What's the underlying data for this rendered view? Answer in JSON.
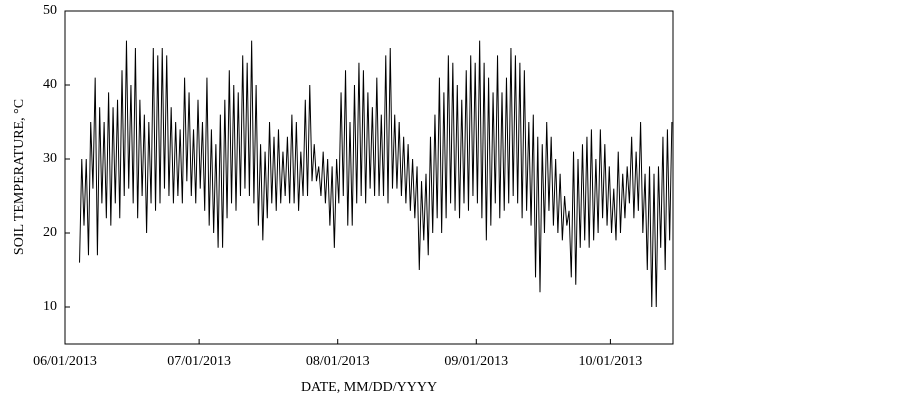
{
  "chart_data": {
    "type": "line",
    "y_label": "SOIL TEMPERATURE, °C",
    "x_label": "DATE, MM/DD/YYYY",
    "color": "#000000",
    "xlim": [
      0,
      136
    ],
    "xticks": [
      {
        "value": 0,
        "label": "06/01/2013"
      },
      {
        "value": 30,
        "label": "07/01/2013"
      },
      {
        "value": 61,
        "label": "08/01/2013"
      },
      {
        "value": 92,
        "label": "09/01/2013"
      },
      {
        "value": 122,
        "label": "10/01/2013"
      }
    ],
    "ylim": [
      5,
      50
    ],
    "yticks": [
      10,
      20,
      30,
      40,
      50
    ],
    "x": [
      3.25,
      3.75,
      4.25,
      4.75,
      5.25,
      5.75,
      6.25,
      6.75,
      7.25,
      7.75,
      8.25,
      8.75,
      9.25,
      9.75,
      10.25,
      10.75,
      11.25,
      11.75,
      12.25,
      12.75,
      13.25,
      13.75,
      14.25,
      14.75,
      15.25,
      15.75,
      16.25,
      16.75,
      17.25,
      17.75,
      18.25,
      18.75,
      19.25,
      19.75,
      20.25,
      20.75,
      21.25,
      21.75,
      22.25,
      22.75,
      23.25,
      23.75,
      24.25,
      24.75,
      25.25,
      25.75,
      26.25,
      26.75,
      27.25,
      27.75,
      28.25,
      28.75,
      29.25,
      29.75,
      30.25,
      30.75,
      31.25,
      31.75,
      32.25,
      32.75,
      33.25,
      33.75,
      34.25,
      34.75,
      35.25,
      35.75,
      36.25,
      36.75,
      37.25,
      37.75,
      38.25,
      38.75,
      39.25,
      39.75,
      40.25,
      40.75,
      41.25,
      41.75,
      42.25,
      42.75,
      43.25,
      43.75,
      44.25,
      44.75,
      45.25,
      45.75,
      46.25,
      46.75,
      47.25,
      47.75,
      48.25,
      48.75,
      49.25,
      49.75,
      50.25,
      50.75,
      51.25,
      51.75,
      52.25,
      52.75,
      53.25,
      53.75,
      54.25,
      54.75,
      55.25,
      55.75,
      56.25,
      56.75,
      57.25,
      57.75,
      58.25,
      58.75,
      59.25,
      59.75,
      60.25,
      60.75,
      61.25,
      61.75,
      62.25,
      62.75,
      63.25,
      63.75,
      64.25,
      64.75,
      65.25,
      65.75,
      66.25,
      66.75,
      67.25,
      67.75,
      68.25,
      68.75,
      69.25,
      69.75,
      70.25,
      70.75,
      71.25,
      71.75,
      72.25,
      72.75,
      73.25,
      73.75,
      74.25,
      74.75,
      75.25,
      75.75,
      76.25,
      76.75,
      77.25,
      77.75,
      78.25,
      78.75,
      79.25,
      79.75,
      80.25,
      80.75,
      81.25,
      81.75,
      82.25,
      82.75,
      83.25,
      83.75,
      84.25,
      84.75,
      85.25,
      85.75,
      86.25,
      86.75,
      87.25,
      87.75,
      88.25,
      88.75,
      89.25,
      89.75,
      90.25,
      90.75,
      91.25,
      91.75,
      92.25,
      92.75,
      93.25,
      93.75,
      94.25,
      94.75,
      95.25,
      95.75,
      96.25,
      96.75,
      97.25,
      97.75,
      98.25,
      98.75,
      99.25,
      99.75,
      100.25,
      100.75,
      101.25,
      101.75,
      102.25,
      102.75,
      103.25,
      103.75,
      104.25,
      104.75,
      105.25,
      105.75,
      106.25,
      106.75,
      107.25,
      107.75,
      108.25,
      108.75,
      109.25,
      109.75,
      110.25,
      110.75,
      111.25,
      111.75,
      112.25,
      112.75,
      113.25,
      113.75,
      114.25,
      114.75,
      115.25,
      115.75,
      116.25,
      116.75,
      117.25,
      117.75,
      118.25,
      118.75,
      119.25,
      119.75,
      120.25,
      120.75,
      121.25,
      121.75,
      122.25,
      122.75,
      123.25,
      123.75,
      124.25,
      124.75,
      125.25,
      125.75,
      126.25,
      126.75,
      127.25,
      127.75,
      128.25,
      128.75,
      129.25,
      129.75,
      130.25,
      130.75,
      131.25,
      131.75,
      132.25,
      132.75,
      133.25,
      133.75,
      134.25,
      134.75,
      135.25,
      135.75
    ],
    "values": [
      16,
      30,
      21,
      30,
      17,
      35,
      26,
      41,
      17,
      37,
      24,
      35,
      22,
      39,
      21,
      37,
      24,
      38,
      22,
      42,
      25,
      46,
      26,
      40,
      24,
      45,
      22,
      38,
      25,
      36,
      20,
      35,
      24,
      45,
      23,
      44,
      24,
      45,
      26,
      44,
      25,
      37,
      24,
      35,
      25,
      34,
      24,
      41,
      27,
      39,
      25,
      34,
      24,
      38,
      26,
      35,
      23,
      41,
      21,
      34,
      20,
      32,
      18,
      36,
      18,
      38,
      22,
      42,
      24,
      40,
      23,
      39,
      25,
      44,
      26,
      43,
      25,
      46,
      24,
      40,
      21,
      32,
      19,
      31,
      22,
      35,
      24,
      33,
      23,
      34,
      24,
      31,
      25,
      33,
      24,
      36,
      24,
      35,
      23,
      31,
      25,
      38,
      25,
      40,
      27,
      32,
      27,
      29,
      25,
      31,
      24,
      30,
      21,
      29,
      18,
      30,
      24,
      39,
      25,
      42,
      21,
      35,
      21,
      40,
      24,
      43,
      25,
      42,
      24,
      39,
      26,
      37,
      25,
      41,
      25,
      36,
      25,
      44,
      24,
      45,
      26,
      36,
      26,
      35,
      25,
      33,
      24,
      32,
      23,
      30,
      22,
      29,
      15,
      27,
      19,
      28,
      17,
      33,
      20,
      36,
      22,
      41,
      20,
      39,
      22,
      44,
      24,
      43,
      23,
      40,
      22,
      38,
      24,
      42,
      23,
      44,
      25,
      43,
      24,
      46,
      22,
      43,
      19,
      41,
      21,
      39,
      24,
      44,
      22,
      39,
      23,
      41,
      24,
      45,
      25,
      44,
      24,
      43,
      22,
      42,
      23,
      35,
      21,
      36,
      14,
      33,
      12,
      32,
      20,
      35,
      23,
      33,
      21,
      30,
      20,
      28,
      19,
      25,
      21,
      23,
      14,
      31,
      13,
      30,
      18,
      32,
      19,
      33,
      18,
      34,
      19,
      30,
      20,
      34,
      22,
      32,
      21,
      29,
      20,
      26,
      19,
      31,
      20,
      28,
      22,
      29,
      24,
      33,
      22,
      31,
      23,
      35,
      20,
      28,
      15,
      29,
      10,
      28,
      10,
      29,
      18,
      33,
      15,
      34,
      19,
      35
    ]
  }
}
